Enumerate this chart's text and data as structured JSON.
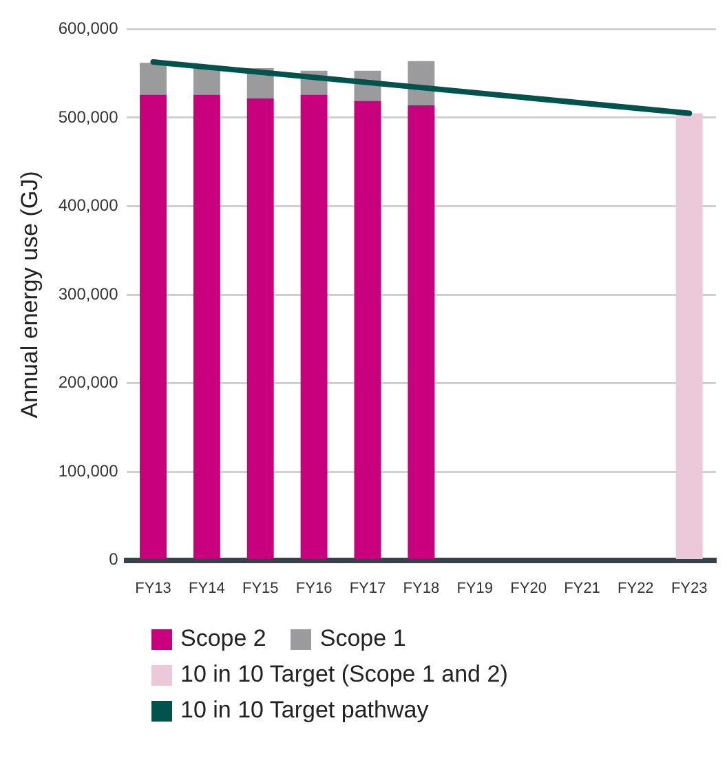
{
  "chart_data": {
    "type": "bar",
    "ylabel": "Annual energy use (GJ)",
    "categories": [
      "FY13",
      "FY14",
      "FY15",
      "FY16",
      "FY17",
      "FY18",
      "FY19",
      "FY20",
      "FY21",
      "FY22",
      "FY23"
    ],
    "stacked": true,
    "ylim": [
      0,
      600000
    ],
    "yticks": [
      {
        "value": 0,
        "label": "0"
      },
      {
        "value": 100000,
        "label": "100,000"
      },
      {
        "value": 200000,
        "label": "200,000"
      },
      {
        "value": 300000,
        "label": "300,000"
      },
      {
        "value": 400000,
        "label": "400,000"
      },
      {
        "value": 500000,
        "label": "500,000"
      },
      {
        "value": 600000,
        "label": "600,000"
      }
    ],
    "grid": "y",
    "legend": "bottom",
    "series": [
      {
        "name": "Scope 2",
        "color": "#c8007e",
        "values": [
          526000,
          526000,
          522000,
          526000,
          519000,
          514000,
          null,
          null,
          null,
          null,
          null
        ]
      },
      {
        "name": "Scope 1",
        "color": "#9b9b9e",
        "values": [
          36000,
          31000,
          34000,
          27000,
          34000,
          50000,
          null,
          null,
          null,
          null,
          null
        ]
      },
      {
        "name": "10 in 10 Target (Scope 1 and 2)",
        "color": "#ebc9d8",
        "values": [
          null,
          null,
          null,
          null,
          null,
          null,
          null,
          null,
          null,
          null,
          505000
        ]
      },
      {
        "name": "10 in 10 Target pathway",
        "type": "line",
        "color": "#00544b",
        "values": [
          563000,
          null,
          null,
          null,
          null,
          null,
          null,
          null,
          null,
          null,
          505000
        ]
      }
    ]
  }
}
